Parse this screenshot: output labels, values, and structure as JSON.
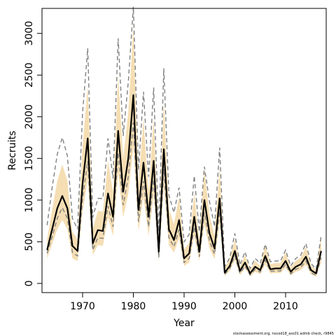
{
  "chart_data": {
    "type": "line",
    "xlabel": "Year",
    "ylabel": "Recruits",
    "xlim": [
      1962,
      2018
    ],
    "ylim": [
      -110,
      3300
    ],
    "x_ticks": [
      1970,
      1980,
      1990,
      2000,
      2010
    ],
    "y_ticks": [
      0,
      500,
      1000,
      1500,
      2000,
      2500,
      3000
    ],
    "grid": false,
    "legend": "none",
    "footnote": "stockassessment.org, nscod18_ass01 admb check, r9845",
    "colors": {
      "estimate": "#000000",
      "band": "#F5DEB3",
      "bounds": "#808080",
      "axis": "#000000"
    },
    "series": [
      {
        "role": "estimate",
        "x": [
          1963,
          1964,
          1965,
          1966,
          1967,
          1968,
          1969,
          1970,
          1971,
          1972,
          1973,
          1974,
          1975,
          1976,
          1977,
          1978,
          1979,
          1980,
          1981,
          1982,
          1983,
          1984,
          1985,
          1986,
          1987,
          1988,
          1989,
          1990,
          1991,
          1992,
          1993,
          1994,
          1995,
          1996,
          1997,
          1998,
          1999,
          2000,
          2001,
          2002,
          2003,
          2004,
          2005,
          2006,
          2007,
          2008,
          2009,
          2010,
          2011,
          2012,
          2013,
          2014,
          2015,
          2016,
          2017
        ],
        "y": [
          400,
          650,
          900,
          1050,
          900,
          450,
          390,
          1200,
          1740,
          480,
          640,
          630,
          1080,
          800,
          1830,
          1100,
          1500,
          2260,
          880,
          1450,
          800,
          1470,
          380,
          1610,
          650,
          520,
          760,
          300,
          360,
          800,
          380,
          1000,
          600,
          420,
          1020,
          130,
          210,
          390,
          150,
          250,
          120,
          200,
          160,
          330,
          170,
          180,
          180,
          270,
          140,
          200,
          230,
          320,
          160,
          120,
          390
        ]
      },
      {
        "role": "band-lower",
        "x": [
          1963,
          1964,
          1965,
          1966,
          1967,
          1968,
          1969,
          1970,
          1971,
          1972,
          1973,
          1974,
          1975,
          1976,
          1977,
          1978,
          1979,
          1980,
          1981,
          1982,
          1983,
          1984,
          1985,
          1986,
          1987,
          1988,
          1989,
          1990,
          1991,
          1992,
          1993,
          1994,
          1995,
          1996,
          1997,
          1998,
          1999,
          2000,
          2001,
          2002,
          2003,
          2004,
          2005,
          2006,
          2007,
          2008,
          2009,
          2010,
          2011,
          2012,
          2013,
          2014,
          2015,
          2016,
          2017
        ],
        "y": [
          300,
          470,
          650,
          760,
          650,
          300,
          270,
          860,
          1250,
          340,
          460,
          450,
          790,
          570,
          1330,
          790,
          1080,
          1640,
          630,
          1040,
          570,
          1060,
          260,
          1160,
          460,
          370,
          540,
          210,
          250,
          570,
          270,
          710,
          420,
          290,
          730,
          90,
          150,
          280,
          100,
          180,
          85,
          140,
          110,
          230,
          120,
          125,
          125,
          190,
          95,
          140,
          160,
          225,
          110,
          80,
          250
        ]
      },
      {
        "role": "band-upper",
        "x": [
          1963,
          1964,
          1965,
          1966,
          1967,
          1968,
          1969,
          1970,
          1971,
          1972,
          1973,
          1974,
          1975,
          1976,
          1977,
          1978,
          1979,
          1980,
          1981,
          1982,
          1983,
          1984,
          1985,
          1986,
          1987,
          1988,
          1989,
          1990,
          1991,
          1992,
          1993,
          1994,
          1995,
          1996,
          1997,
          1998,
          1999,
          2000,
          2001,
          2002,
          2003,
          2004,
          2005,
          2006,
          2007,
          2008,
          2009,
          2010,
          2011,
          2012,
          2013,
          2014,
          2015,
          2016,
          2017
        ],
        "y": [
          530,
          880,
          1230,
          1430,
          1230,
          620,
          530,
          1650,
          2370,
          650,
          870,
          860,
          1470,
          1090,
          2500,
          1500,
          2050,
          3080,
          1200,
          1980,
          1090,
          2000,
          520,
          2190,
          890,
          710,
          1040,
          410,
          490,
          1090,
          520,
          1370,
          820,
          570,
          1390,
          180,
          290,
          530,
          200,
          340,
          160,
          270,
          210,
          450,
          230,
          245,
          245,
          370,
          190,
          270,
          310,
          440,
          220,
          160,
          560
        ]
      },
      {
        "role": "bound-lower",
        "x": [
          1963,
          1964,
          1965,
          1966,
          1967,
          1968,
          1969,
          1970,
          1971,
          1972,
          1973,
          1974,
          1975,
          1976,
          1977,
          1978,
          1979,
          1980,
          1981,
          1982,
          1983,
          1984,
          1985,
          1986,
          1987,
          1988,
          1989,
          1990,
          1991,
          1992,
          1993,
          1994,
          1995,
          1996,
          1997,
          1998,
          1999,
          2000,
          2001,
          2002,
          2003,
          2004,
          2005,
          2006,
          2007,
          2008,
          2009,
          2010,
          2011,
          2012,
          2013,
          2014,
          2015,
          2016,
          2017
        ],
        "y": [
          360,
          560,
          780,
          910,
          780,
          370,
          330,
          1020,
          1470,
          400,
          550,
          540,
          930,
          680,
          1570,
          940,
          1280,
          1930,
          740,
          1230,
          680,
          1250,
          310,
          1370,
          550,
          440,
          650,
          250,
          300,
          680,
          320,
          850,
          510,
          350,
          870,
          110,
          180,
          330,
          120,
          210,
          100,
          170,
          135,
          280,
          145,
          150,
          150,
          230,
          115,
          170,
          195,
          270,
          130,
          95,
          310
        ]
      },
      {
        "role": "bound-upper",
        "x": [
          1963,
          1964,
          1965,
          1966,
          1967,
          1968,
          1969,
          1970,
          1971,
          1972,
          1973,
          1974,
          1975,
          1976,
          1977,
          1978,
          1979,
          1980,
          1981,
          1982,
          1983,
          1984,
          1985,
          1986,
          1987,
          1988,
          1989,
          1990,
          1991,
          1992,
          1993,
          1994,
          1995,
          1996,
          1997,
          1998,
          1999,
          2000,
          2001,
          2002,
          2003,
          2004,
          2005,
          2006,
          2007,
          2008,
          2009,
          2010,
          2011,
          2012,
          2013,
          2014,
          2015,
          2016,
          2017
        ],
        "y": [
          700,
          1150,
          1550,
          1750,
          1530,
          780,
          650,
          2050,
          2820,
          790,
          1020,
          1020,
          1740,
          1260,
          2940,
          1770,
          2420,
          3320,
          1360,
          2300,
          1280,
          2350,
          620,
          2580,
          1060,
          850,
          1150,
          500,
          590,
          1290,
          620,
          1400,
          980,
          680,
          1630,
          200,
          310,
          600,
          220,
          380,
          180,
          300,
          240,
          470,
          260,
          270,
          270,
          400,
          210,
          300,
          340,
          480,
          240,
          170,
          570
        ]
      }
    ]
  }
}
